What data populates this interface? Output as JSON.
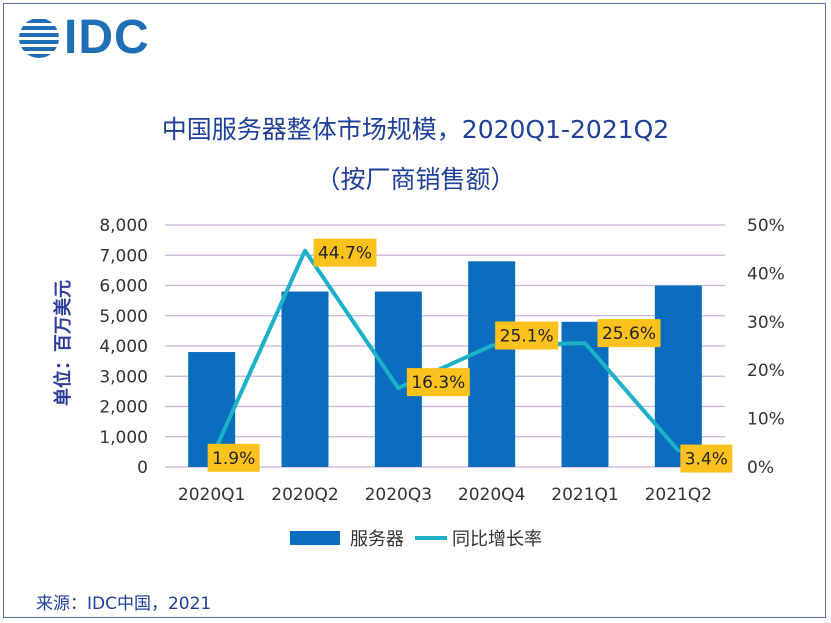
{
  "logo": {
    "text": "IDC",
    "color": "#1f6fb6"
  },
  "title": {
    "line1": "中国服务器整体市场规模，2020Q1-2021Q2",
    "line2": "（按厂商销售额）"
  },
  "unit_label": "单位：百万美元",
  "source": "来源：IDC中国，2021",
  "colors": {
    "bar": "#0a6dbd",
    "line": "#1cb1c9",
    "label_bg": "#fbc11d",
    "grid": "#c9b3de",
    "axis_text": "#333333"
  },
  "chart_data": {
    "type": "bar",
    "categories": [
      "2020Q1",
      "2020Q2",
      "2020Q3",
      "2020Q4",
      "2021Q1",
      "2021Q2"
    ],
    "series": [
      {
        "name": "服务器",
        "type": "bar",
        "axis": "left",
        "values": [
          3800,
          5800,
          5800,
          6800,
          4800,
          6000
        ]
      },
      {
        "name": "同比增长率",
        "type": "line",
        "axis": "right",
        "values": [
          1.9,
          44.7,
          16.3,
          25.1,
          25.6,
          3.4
        ]
      }
    ],
    "point_labels": [
      "1.9%",
      "44.7%",
      "16.3%",
      "25.1%",
      "25.6%",
      "3.4%"
    ],
    "y_left": {
      "min": 0,
      "max": 8000,
      "ticks": [
        "0",
        "1,000",
        "2,000",
        "3,000",
        "4,000",
        "5,000",
        "6,000",
        "7,000",
        "8,000"
      ]
    },
    "y_right": {
      "min": 0,
      "max": 50,
      "ticks": [
        "0%",
        "10%",
        "20%",
        "30%",
        "40%",
        "50%"
      ]
    },
    "grid": true,
    "legend": {
      "position": "bottom",
      "items": [
        "服务器",
        "同比增长率"
      ]
    }
  }
}
